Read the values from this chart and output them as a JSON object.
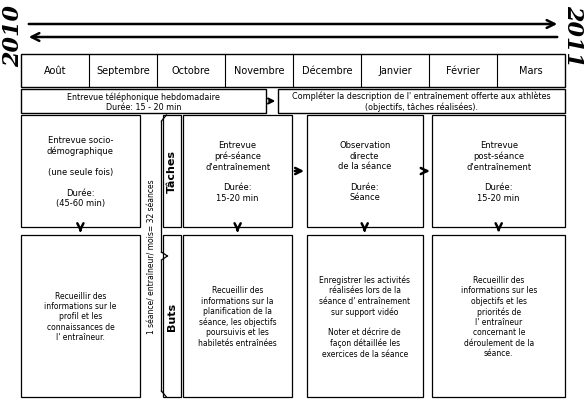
{
  "months": [
    "Août",
    "Septembre",
    "Octobre",
    "Novembre",
    "Décembre",
    "Janvier",
    "Février",
    "Mars"
  ],
  "year_left": "2010",
  "year_right": "2011",
  "phone_interview_left": "Entrevue téléphonique hebdomadaire\nDurée: 15 - 20 min",
  "phone_interview_right": "Compléter la description de l' entraînement offerte aux athlètes\n(objectifs, tâches réalisées).",
  "sidebar_label": "1 séance/ entraîneur/ mois= 32 séances",
  "taches_label": "Tâches",
  "buts_label": "Buts",
  "boxes_top": [
    "Entrevue socio-\ndémographique\n\n(une seule fois)\n\nDurée:\n(45-60 min)",
    "Entrevue\npré-séance\nd'entraînement\n\nDurée:\n15-20 min",
    "Observation\ndirecte\nde la séance\n\nDurée:\nSéance",
    "Entrevue\npost-séance\nd'entraînement\n\nDurée:\n15-20 min"
  ],
  "boxes_bottom": [
    "Recueillir des\ninformations sur le\nprofil et les\nconnaissances de\nl' entraîneur.",
    "Recueillir des\ninformations sur la\nplanification de la\nséance, les objectifs\npoursuivis et les\nhabiletés entraînées",
    "Enregistrer les activités\nréalisées lors de la\nséance d' entraînement\nsur support vidéo\n\nNoter et décrire de\nfaçon détaillée les\nexercices de la séance",
    "Recueillir des\ninformations sur les\nobjectifs et les\npriorités de\nl' entraîneur\nconcernant le\ndéroulement de la\nséance."
  ],
  "bg_color": "#ffffff",
  "box_color": "#ffffff",
  "box_edge_color": "#000000"
}
